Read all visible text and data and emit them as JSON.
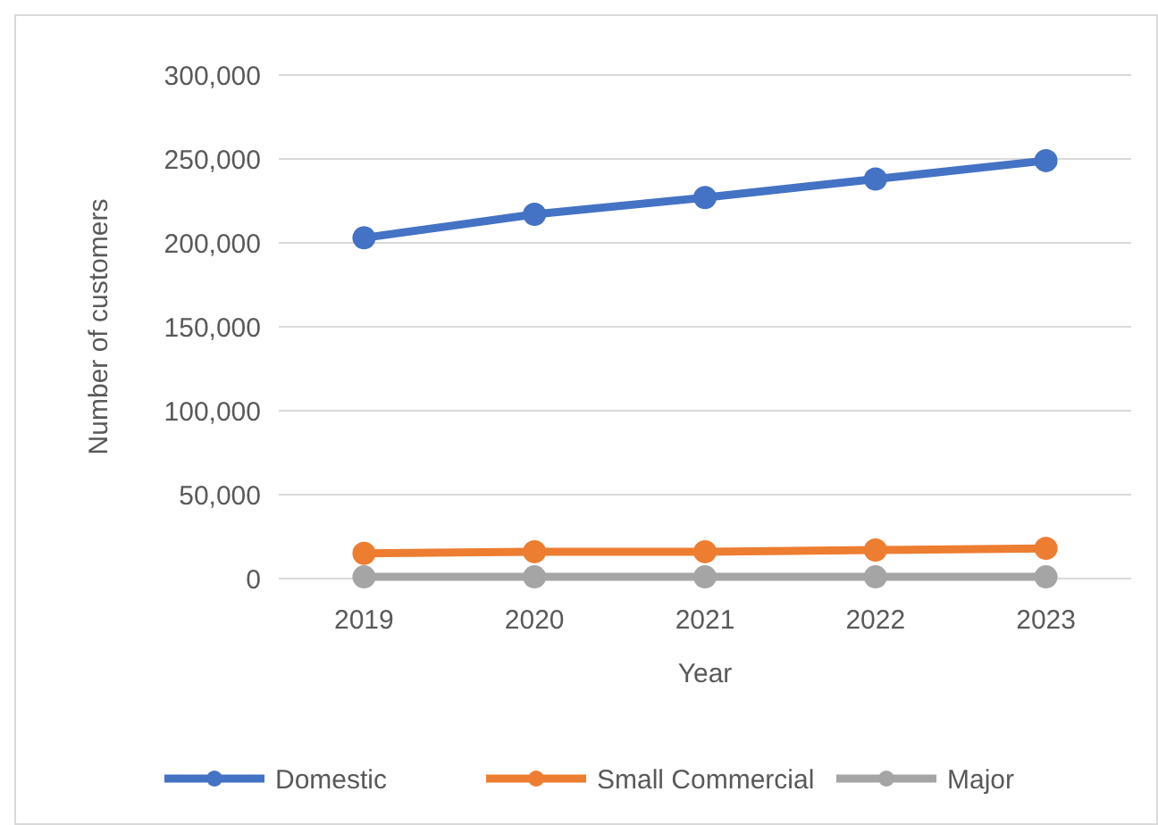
{
  "chart_data": {
    "type": "line",
    "xlabel": "Year",
    "ylabel": "Number of customers",
    "categories": [
      "2019",
      "2020",
      "2021",
      "2022",
      "2023"
    ],
    "series": [
      {
        "name": "Domestic",
        "color": "#4472c4",
        "values": [
          203000,
          217000,
          227000,
          238000,
          249000
        ]
      },
      {
        "name": "Small Commercial",
        "color": "#ed7d31",
        "values": [
          15000,
          16000,
          16000,
          17000,
          18000
        ]
      },
      {
        "name": "Major",
        "color": "#a5a5a5",
        "values": [
          1000,
          1000,
          1000,
          1000,
          1000
        ]
      }
    ],
    "ylim": [
      0,
      300000
    ],
    "yticks": [
      {
        "value": 0,
        "label": "0"
      },
      {
        "value": 50000,
        "label": "50,000"
      },
      {
        "value": 100000,
        "label": "100,000"
      },
      {
        "value": 150000,
        "label": "150,000"
      },
      {
        "value": 200000,
        "label": "200,000"
      },
      {
        "value": 250000,
        "label": "250,000"
      },
      {
        "value": 300000,
        "label": "300,000"
      }
    ],
    "grid": "y",
    "legend": "bottom",
    "marker": "circle",
    "line_style": "solid"
  }
}
